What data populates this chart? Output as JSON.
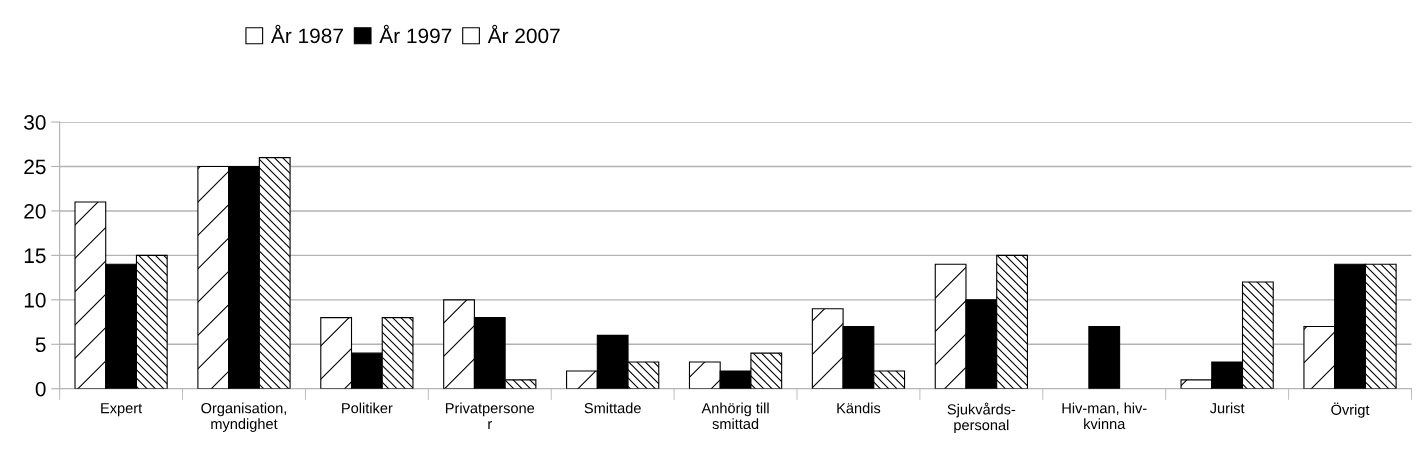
{
  "chart_data": {
    "type": "bar",
    "categories": [
      "Expert",
      "Organisation,\nmyndighet",
      "Politiker",
      "Privatpersone\nr",
      "Smittade",
      "Anhörig till\nsmittad",
      "Kändis",
      "Sjukvårds-\npersonal",
      "Hiv-man, hiv-\nkvinna",
      "Jurist",
      "Övrigt"
    ],
    "series": [
      {
        "name": "År 1987",
        "color": "#ffffff",
        "values": [
          21,
          25,
          8,
          10,
          2,
          3,
          9,
          14,
          null,
          1,
          7
        ]
      },
      {
        "name": "År 1997",
        "color": "#000000",
        "values": [
          14,
          25,
          4,
          8,
          6,
          2,
          7,
          10,
          7,
          3,
          14
        ]
      },
      {
        "name": "År 2007",
        "color": "#ffffff",
        "values": [
          15,
          26,
          8,
          1,
          3,
          4,
          2,
          15,
          null,
          12,
          14
        ]
      }
    ],
    "ylim": [
      0,
      30
    ],
    "yticks": [
      0,
      5,
      10,
      15,
      20,
      25,
      30
    ],
    "grid": "y",
    "legend": "top"
  }
}
